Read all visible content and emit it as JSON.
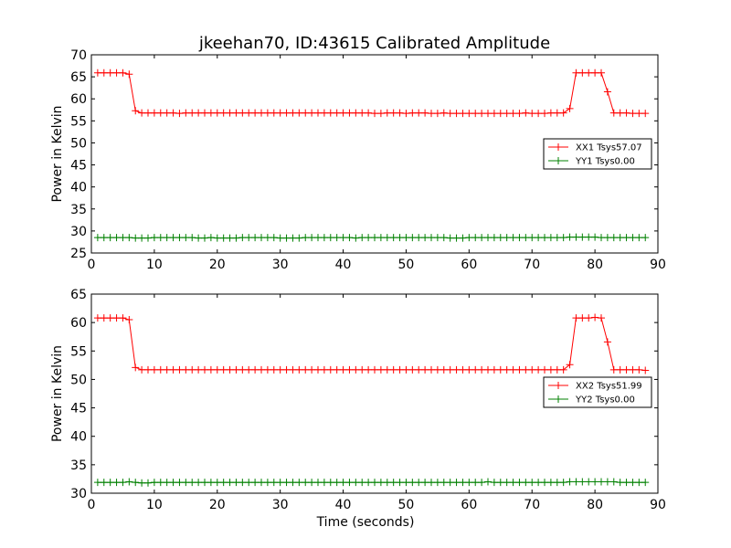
{
  "figure": {
    "title": "jkeehan70, ID:43615 Calibrated Amplitude"
  },
  "chart_data": [
    {
      "type": "line",
      "title": "jkeehan70, ID:43615 Calibrated Amplitude",
      "xlabel": "",
      "ylabel": "Power in Kelvin",
      "xlim": [
        0,
        90
      ],
      "ylim": [
        25,
        70
      ],
      "xticks": [
        0,
        10,
        20,
        30,
        40,
        50,
        60,
        70,
        80,
        90
      ],
      "yticks": [
        25,
        30,
        35,
        40,
        45,
        50,
        55,
        60,
        65,
        70
      ],
      "grid": false,
      "legend_position": "center-right",
      "x": [
        1,
        2,
        3,
        4,
        5,
        6,
        7,
        8,
        9,
        10,
        11,
        12,
        13,
        14,
        15,
        16,
        17,
        18,
        19,
        20,
        21,
        22,
        23,
        24,
        25,
        26,
        27,
        28,
        29,
        30,
        31,
        32,
        33,
        34,
        35,
        36,
        37,
        38,
        39,
        40,
        41,
        42,
        43,
        44,
        45,
        46,
        47,
        48,
        49,
        50,
        51,
        52,
        53,
        54,
        55,
        56,
        57,
        58,
        59,
        60,
        61,
        62,
        63,
        64,
        65,
        66,
        67,
        68,
        69,
        70,
        71,
        72,
        73,
        74,
        75,
        76,
        77,
        78,
        79,
        80,
        81,
        82,
        83,
        84,
        85,
        86,
        87,
        88
      ],
      "series": [
        {
          "name": "XX1 Tsys57.07",
          "color": "#ff0000",
          "values": [
            65.9,
            65.9,
            65.9,
            65.9,
            65.9,
            65.6,
            57.3,
            56.8,
            56.8,
            56.8,
            56.8,
            56.8,
            56.8,
            56.7,
            56.8,
            56.8,
            56.8,
            56.8,
            56.8,
            56.8,
            56.8,
            56.8,
            56.8,
            56.8,
            56.8,
            56.8,
            56.8,
            56.8,
            56.8,
            56.8,
            56.8,
            56.8,
            56.8,
            56.8,
            56.8,
            56.8,
            56.8,
            56.8,
            56.8,
            56.8,
            56.8,
            56.8,
            56.8,
            56.8,
            56.7,
            56.7,
            56.8,
            56.8,
            56.8,
            56.7,
            56.8,
            56.8,
            56.8,
            56.7,
            56.7,
            56.8,
            56.7,
            56.7,
            56.7,
            56.7,
            56.7,
            56.7,
            56.7,
            56.7,
            56.7,
            56.7,
            56.7,
            56.7,
            56.8,
            56.7,
            56.7,
            56.7,
            56.8,
            56.8,
            56.8,
            57.8,
            65.9,
            65.9,
            65.9,
            65.9,
            65.9,
            61.6,
            56.8,
            56.8,
            56.8,
            56.7,
            56.7,
            56.7
          ]
        },
        {
          "name": "YY1 Tsys0.00",
          "color": "#008000",
          "values": [
            28.5,
            28.5,
            28.5,
            28.5,
            28.5,
            28.5,
            28.4,
            28.4,
            28.4,
            28.5,
            28.5,
            28.5,
            28.5,
            28.5,
            28.5,
            28.5,
            28.4,
            28.4,
            28.5,
            28.4,
            28.4,
            28.4,
            28.4,
            28.5,
            28.5,
            28.5,
            28.5,
            28.5,
            28.5,
            28.4,
            28.4,
            28.4,
            28.4,
            28.5,
            28.5,
            28.5,
            28.5,
            28.5,
            28.5,
            28.5,
            28.5,
            28.4,
            28.5,
            28.5,
            28.5,
            28.5,
            28.5,
            28.5,
            28.5,
            28.5,
            28.5,
            28.5,
            28.5,
            28.5,
            28.5,
            28.5,
            28.4,
            28.4,
            28.4,
            28.5,
            28.5,
            28.5,
            28.5,
            28.5,
            28.5,
            28.5,
            28.5,
            28.5,
            28.5,
            28.5,
            28.5,
            28.5,
            28.5,
            28.5,
            28.5,
            28.6,
            28.6,
            28.6,
            28.6,
            28.6,
            28.5,
            28.5,
            28.5,
            28.5,
            28.5,
            28.5,
            28.5,
            28.5
          ]
        }
      ]
    },
    {
      "type": "line",
      "title": "",
      "xlabel": "Time (seconds)",
      "ylabel": "Power in Kelvin",
      "xlim": [
        0,
        90
      ],
      "ylim": [
        30,
        65
      ],
      "xticks": [
        0,
        10,
        20,
        30,
        40,
        50,
        60,
        70,
        80,
        90
      ],
      "yticks": [
        30,
        35,
        40,
        45,
        50,
        55,
        60,
        65
      ],
      "grid": false,
      "legend_position": "center-right",
      "x": [
        1,
        2,
        3,
        4,
        5,
        6,
        7,
        8,
        9,
        10,
        11,
        12,
        13,
        14,
        15,
        16,
        17,
        18,
        19,
        20,
        21,
        22,
        23,
        24,
        25,
        26,
        27,
        28,
        29,
        30,
        31,
        32,
        33,
        34,
        35,
        36,
        37,
        38,
        39,
        40,
        41,
        42,
        43,
        44,
        45,
        46,
        47,
        48,
        49,
        50,
        51,
        52,
        53,
        54,
        55,
        56,
        57,
        58,
        59,
        60,
        61,
        62,
        63,
        64,
        65,
        66,
        67,
        68,
        69,
        70,
        71,
        72,
        73,
        74,
        75,
        76,
        77,
        78,
        79,
        80,
        81,
        82,
        83,
        84,
        85,
        86,
        87,
        88
      ],
      "series": [
        {
          "name": "XX2 Tsys51.99",
          "color": "#ff0000",
          "values": [
            60.8,
            60.8,
            60.8,
            60.8,
            60.8,
            60.5,
            52.1,
            51.7,
            51.7,
            51.7,
            51.7,
            51.7,
            51.7,
            51.7,
            51.7,
            51.7,
            51.7,
            51.7,
            51.7,
            51.7,
            51.7,
            51.7,
            51.7,
            51.7,
            51.7,
            51.7,
            51.7,
            51.7,
            51.7,
            51.7,
            51.7,
            51.7,
            51.7,
            51.7,
            51.7,
            51.7,
            51.7,
            51.7,
            51.7,
            51.7,
            51.7,
            51.7,
            51.7,
            51.7,
            51.7,
            51.7,
            51.7,
            51.7,
            51.7,
            51.7,
            51.7,
            51.7,
            51.7,
            51.7,
            51.7,
            51.7,
            51.7,
            51.7,
            51.7,
            51.7,
            51.7,
            51.7,
            51.7,
            51.7,
            51.7,
            51.7,
            51.7,
            51.7,
            51.7,
            51.7,
            51.7,
            51.7,
            51.7,
            51.7,
            51.7,
            52.6,
            60.8,
            60.8,
            60.8,
            60.9,
            60.8,
            56.6,
            51.7,
            51.7,
            51.7,
            51.7,
            51.7,
            51.6
          ]
        },
        {
          "name": "YY2 Tsys0.00",
          "color": "#008000",
          "values": [
            31.9,
            31.9,
            31.9,
            31.9,
            31.9,
            32.0,
            31.9,
            31.8,
            31.8,
            31.9,
            31.9,
            31.9,
            31.9,
            31.9,
            31.9,
            31.9,
            31.9,
            31.9,
            31.9,
            31.9,
            31.9,
            31.9,
            31.9,
            31.9,
            31.9,
            31.9,
            31.9,
            31.9,
            31.9,
            31.9,
            31.9,
            31.9,
            31.9,
            31.9,
            31.9,
            31.9,
            31.9,
            31.9,
            31.9,
            31.9,
            31.9,
            31.9,
            31.9,
            31.9,
            31.9,
            31.9,
            31.9,
            31.9,
            31.9,
            31.9,
            31.9,
            31.9,
            31.9,
            31.9,
            31.9,
            31.9,
            31.9,
            31.9,
            31.9,
            31.9,
            31.9,
            31.9,
            32.0,
            31.9,
            31.9,
            31.9,
            31.9,
            31.9,
            31.9,
            31.9,
            31.9,
            31.9,
            31.9,
            31.9,
            31.9,
            32.0,
            32.0,
            32.0,
            32.0,
            32.0,
            32.0,
            32.0,
            32.0,
            31.9,
            31.9,
            31.9,
            31.9,
            31.9
          ]
        }
      ]
    }
  ]
}
